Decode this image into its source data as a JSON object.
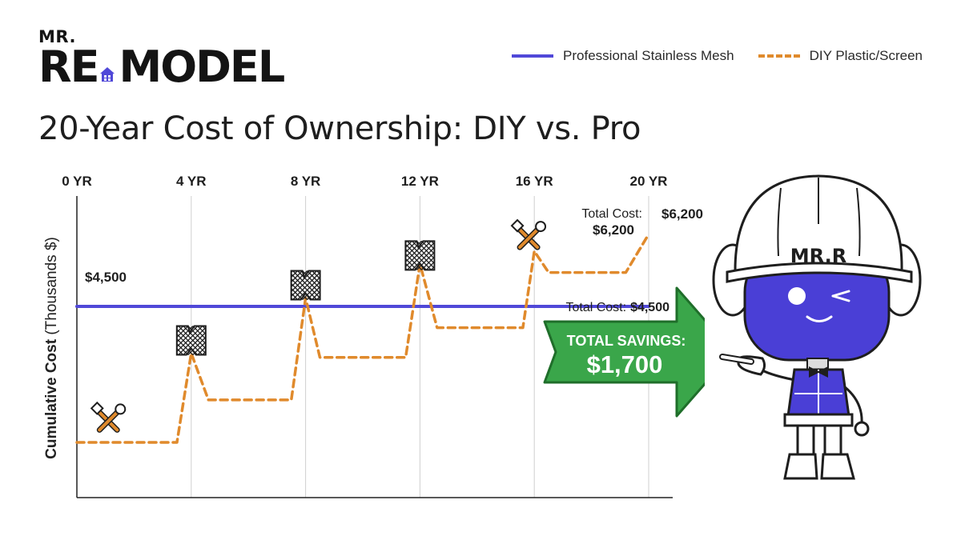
{
  "brand": {
    "small": "MR.",
    "big_left": "RE",
    "big_right": "MODEL",
    "mascot_text": "MR.R"
  },
  "colors": {
    "pro": "#5048d8",
    "diy": "#e08a2c",
    "savings_green": "#3aa64a",
    "mascot_face": "#4a3fd6"
  },
  "chart_data": {
    "type": "line",
    "title": "20-Year Cost of Ownership: DIY vs. Pro",
    "ylabel": "Cumulative Cost (Thousands $)",
    "x_ticks": [
      "0 YR",
      "4 YR",
      "8 YR",
      "12 YR",
      "16 YR",
      "20 YR"
    ],
    "xlim": [
      0,
      20
    ],
    "ylim": [
      0,
      7.1
    ],
    "legend_position": "top-right",
    "series": [
      {
        "name": "Professional Stainless Mesh",
        "style": "solid",
        "x": [
          0,
          20
        ],
        "y": [
          4.5,
          4.5
        ]
      },
      {
        "name": "DIY Plastic/Screen",
        "style": "dashed",
        "x": [
          0,
          3.5,
          4,
          4.6,
          7.5,
          8,
          8.5,
          11.5,
          12,
          12.6,
          15.6,
          16,
          16.5,
          19.2,
          20
        ],
        "y": [
          1.3,
          1.3,
          3.4,
          2.3,
          2.3,
          4.7,
          3.3,
          3.3,
          5.5,
          4.0,
          4.0,
          5.8,
          5.3,
          5.3,
          6.2
        ]
      }
    ],
    "annotations": {
      "pro_label": "$4,500",
      "diy_end_label": "$6,200",
      "diy_total_label": "Total Cost:",
      "diy_total_value": "$6,200",
      "pro_total_label": "Total Cost:",
      "pro_total_value": "$4,500",
      "savings_line1": "TOTAL SAVINGS:",
      "savings_line2": "$1,700"
    },
    "event_icons": [
      {
        "icon": "tools-icon",
        "x": 1.1,
        "y": 1.8
      },
      {
        "icon": "torn-screen-icon",
        "x": 0,
        "y": 3.7
      },
      {
        "icon": "torn-screen-icon",
        "x": 0,
        "y": 5.0
      },
      {
        "icon": "torn-screen-icon",
        "x": 0,
        "y": 5.7
      },
      {
        "icon": "tools-icon",
        "x": 15.8,
        "y": 6.1
      }
    ]
  }
}
